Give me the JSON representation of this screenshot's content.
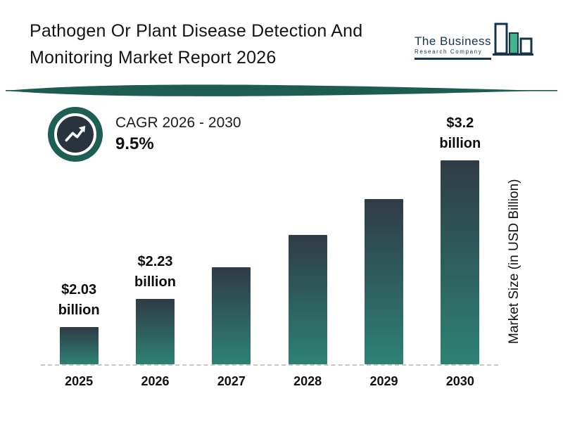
{
  "header": {
    "title_line1": "Pathogen Or Plant Disease Detection And",
    "title_line2": "Monitoring Market Report 2026",
    "logo": {
      "line1": "The Business",
      "line2": "Research Company"
    }
  },
  "cagr": {
    "label": "CAGR 2026 - 2030",
    "value": "9.5%"
  },
  "chart_data": {
    "type": "bar",
    "title": "Pathogen Or Plant Disease Detection And Monitoring Market Report 2026",
    "categories": [
      "2025",
      "2026",
      "2027",
      "2028",
      "2029",
      "2030"
    ],
    "values": [
      2.03,
      2.23,
      2.45,
      2.68,
      2.93,
      3.2
    ],
    "bar_value_labels": [
      "$2.03",
      "$2.23",
      "",
      "",
      "",
      "$3.2"
    ],
    "bar_value_suffix": "billion",
    "xlabel": "",
    "ylabel": "Market Size (in USD Billion)",
    "ylim": [
      1.77,
      3.25
    ],
    "grid": false,
    "legend": "none",
    "bar_color_top": "#2f3b45",
    "bar_color_bottom": "#2e8273"
  },
  "colors": {
    "divider": "#1d5c50",
    "badge_ring": "#1d5f52",
    "badge_inner": "#28333f",
    "logo_green": "#43b489",
    "logo_outline": "#16344a"
  }
}
